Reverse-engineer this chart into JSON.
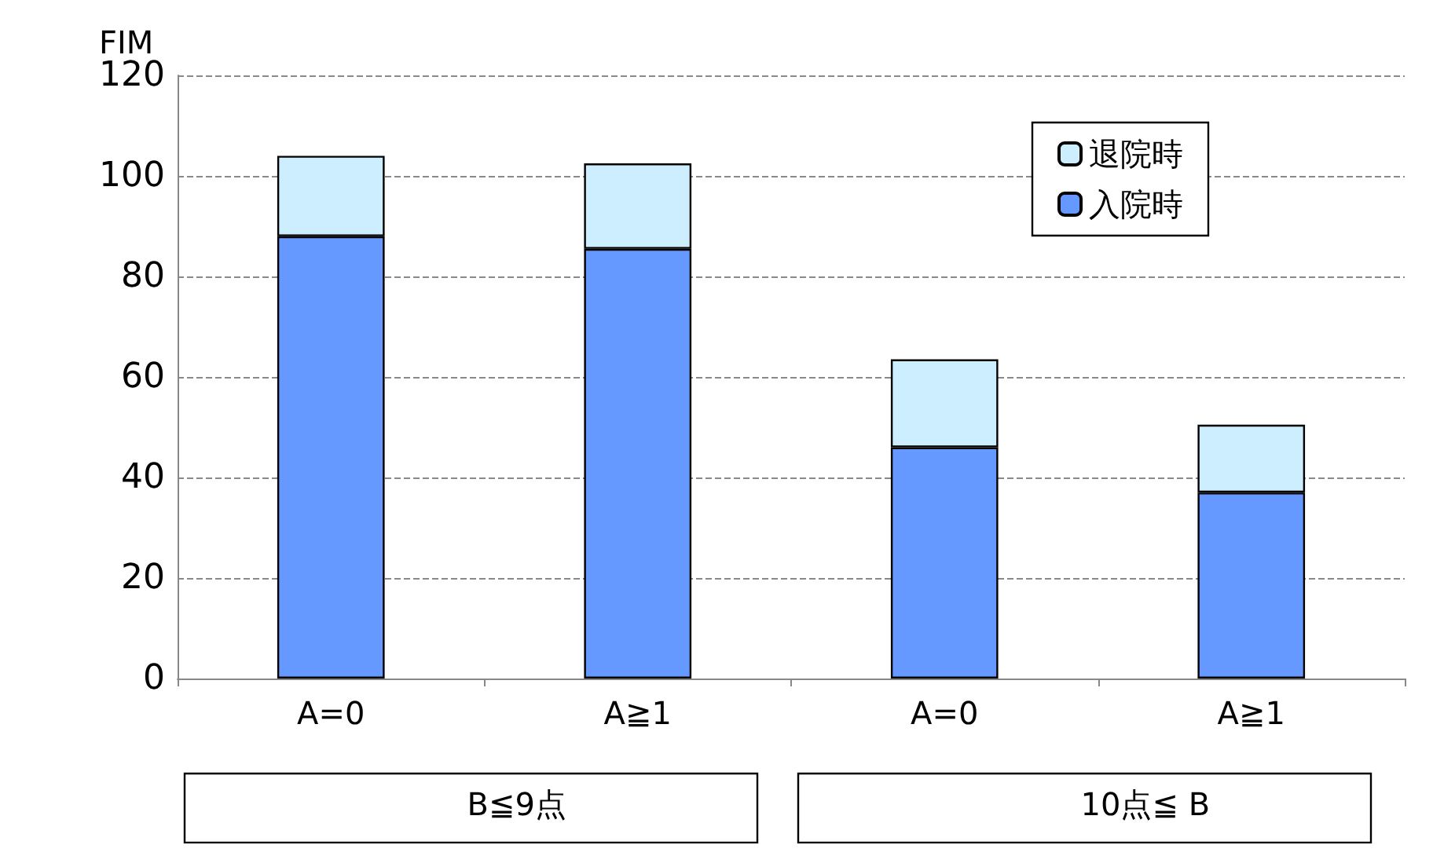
{
  "chart_data": {
    "type": "bar",
    "stacked": true,
    "ylabel": "FIM",
    "categories": [
      "A=0",
      "A≧1",
      "A=0",
      "A≧1"
    ],
    "series": [
      {
        "name": "入院時",
        "color": "#6699ff",
        "values": [
          88,
          85.5,
          46,
          37
        ]
      },
      {
        "name": "退院時",
        "color": "#cceeff",
        "values": [
          16,
          17,
          17.5,
          13.5
        ]
      }
    ],
    "ylim": [
      0,
      120
    ],
    "yticks": [
      0,
      20,
      40,
      60,
      80,
      100,
      120
    ],
    "grid": "y",
    "line_style": "dashed",
    "legend": "top right",
    "annotations": [
      "B≦9点",
      "10点≦ B"
    ]
  }
}
